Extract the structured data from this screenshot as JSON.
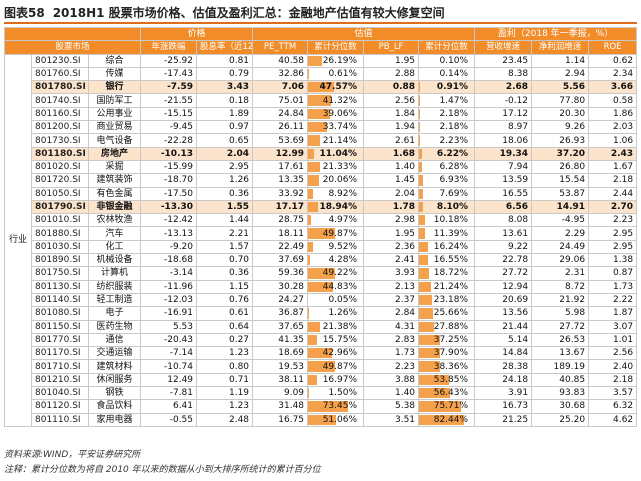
{
  "figure": {
    "number": "图表58",
    "title": "2018H1 股票市场价格、估值及盈利汇总：金融地产估值有较大修复空间"
  },
  "headers": {
    "group_price": "价格",
    "group_valuation": "估值",
    "group_profit": "盈利（2018 年一季报，%）",
    "market": "股票市场",
    "cols": [
      "年涨跌幅",
      "股息率（近12M）",
      "PE_TTM",
      "累计分位数",
      "PB_LF",
      "累计分位数",
      "营收增速",
      "净利润增速",
      "ROE"
    ]
  },
  "industry_label": "行业",
  "colors": {
    "header": "#f28c28",
    "highlight": "#fbe3cc",
    "bar": "#f5a04a",
    "rule": "#e06b1a"
  },
  "rows": [
    {
      "code": "801230.SI",
      "name": "综合",
      "chg": "-25.92",
      "dy": "0.81",
      "pe": "40.58",
      "pe_pct": "26.19%",
      "pe_pct_v": 26.19,
      "pb": "1.95",
      "pb_pct": "0.10%",
      "pb_pct_v": 0.1,
      "rev": "23.45",
      "np": "1.14",
      "roe": "0.62",
      "hl": false
    },
    {
      "code": "801760.SI",
      "name": "传媒",
      "chg": "-17.43",
      "dy": "0.79",
      "pe": "32.86",
      "pe_pct": "0.61%",
      "pe_pct_v": 0.61,
      "pb": "2.88",
      "pb_pct": "0.14%",
      "pb_pct_v": 0.14,
      "rev": "8.38",
      "np": "2.94",
      "roe": "2.34",
      "hl": false
    },
    {
      "code": "801780.SI",
      "name": "银行",
      "chg": "-7.59",
      "dy": "3.43",
      "pe": "7.06",
      "pe_pct": "47.57%",
      "pe_pct_v": 47.57,
      "pb": "0.88",
      "pb_pct": "0.91%",
      "pb_pct_v": 0.91,
      "rev": "2.68",
      "np": "5.56",
      "roe": "3.66",
      "hl": true
    },
    {
      "code": "801740.SI",
      "name": "国防军工",
      "chg": "-21.55",
      "dy": "0.18",
      "pe": "75.01",
      "pe_pct": "41.32%",
      "pe_pct_v": 41.32,
      "pb": "2.56",
      "pb_pct": "1.47%",
      "pb_pct_v": 1.47,
      "rev": "-0.12",
      "np": "77.80",
      "roe": "0.58",
      "hl": false
    },
    {
      "code": "801160.SI",
      "name": "公用事业",
      "chg": "-15.15",
      "dy": "1.89",
      "pe": "24.84",
      "pe_pct": "39.06%",
      "pe_pct_v": 39.06,
      "pb": "1.84",
      "pb_pct": "2.18%",
      "pb_pct_v": 2.18,
      "rev": "17.12",
      "np": "20.30",
      "roe": "1.86",
      "hl": false
    },
    {
      "code": "801200.SI",
      "name": "商业贸易",
      "chg": "-9.45",
      "dy": "0.97",
      "pe": "26.11",
      "pe_pct": "33.74%",
      "pe_pct_v": 33.74,
      "pb": "1.94",
      "pb_pct": "2.18%",
      "pb_pct_v": 2.18,
      "rev": "8.97",
      "np": "9.26",
      "roe": "2.03",
      "hl": false
    },
    {
      "code": "801730.SI",
      "name": "电气设备",
      "chg": "-22.28",
      "dy": "0.65",
      "pe": "53.69",
      "pe_pct": "21.14%",
      "pe_pct_v": 21.14,
      "pb": "2.61",
      "pb_pct": "2.23%",
      "pb_pct_v": 2.23,
      "rev": "18.06",
      "np": "26.93",
      "roe": "1.06",
      "hl": false
    },
    {
      "code": "801180.SI",
      "name": "房地产",
      "chg": "-10.13",
      "dy": "2.04",
      "pe": "12.99",
      "pe_pct": "11.04%",
      "pe_pct_v": 11.04,
      "pb": "1.68",
      "pb_pct": "6.22%",
      "pb_pct_v": 6.22,
      "rev": "19.34",
      "np": "37.20",
      "roe": "2.43",
      "hl": true
    },
    {
      "code": "801020.SI",
      "name": "采掘",
      "chg": "-15.99",
      "dy": "2.95",
      "pe": "17.61",
      "pe_pct": "21.33%",
      "pe_pct_v": 21.33,
      "pb": "1.40",
      "pb_pct": "6.28%",
      "pb_pct_v": 6.28,
      "rev": "7.94",
      "np": "26.80",
      "roe": "1.67",
      "hl": false
    },
    {
      "code": "801720.SI",
      "name": "建筑装饰",
      "chg": "-18.70",
      "dy": "1.26",
      "pe": "13.35",
      "pe_pct": "20.06%",
      "pe_pct_v": 20.06,
      "pb": "1.45",
      "pb_pct": "6.93%",
      "pb_pct_v": 6.93,
      "rev": "13.59",
      "np": "15.54",
      "roe": "2.18",
      "hl": false
    },
    {
      "code": "801050.SI",
      "name": "有色金属",
      "chg": "-17.50",
      "dy": "0.36",
      "pe": "33.92",
      "pe_pct": "8.92%",
      "pe_pct_v": 8.92,
      "pb": "2.04",
      "pb_pct": "7.69%",
      "pb_pct_v": 7.69,
      "rev": "16.55",
      "np": "53.87",
      "roe": "2.44",
      "hl": false
    },
    {
      "code": "801790.SI",
      "name": "非银金融",
      "chg": "-13.30",
      "dy": "1.55",
      "pe": "17.17",
      "pe_pct": "18.94%",
      "pe_pct_v": 18.94,
      "pb": "1.78",
      "pb_pct": "8.10%",
      "pb_pct_v": 8.1,
      "rev": "6.56",
      "np": "14.91",
      "roe": "2.70",
      "hl": true
    },
    {
      "code": "801010.SI",
      "name": "农林牧渔",
      "chg": "-12.42",
      "dy": "1.44",
      "pe": "28.75",
      "pe_pct": "4.97%",
      "pe_pct_v": 4.97,
      "pb": "2.98",
      "pb_pct": "10.18%",
      "pb_pct_v": 10.18,
      "rev": "8.08",
      "np": "-4.95",
      "roe": "2.23",
      "hl": false
    },
    {
      "code": "801880.SI",
      "name": "汽车",
      "chg": "-13.13",
      "dy": "2.21",
      "pe": "18.11",
      "pe_pct": "49.87%",
      "pe_pct_v": 49.87,
      "pb": "1.95",
      "pb_pct": "11.39%",
      "pb_pct_v": 11.39,
      "rev": "13.61",
      "np": "2.29",
      "roe": "2.95",
      "hl": false
    },
    {
      "code": "801030.SI",
      "name": "化工",
      "chg": "-9.20",
      "dy": "1.57",
      "pe": "22.49",
      "pe_pct": "9.52%",
      "pe_pct_v": 9.52,
      "pb": "2.36",
      "pb_pct": "16.24%",
      "pb_pct_v": 16.24,
      "rev": "9.22",
      "np": "24.49",
      "roe": "2.95",
      "hl": false
    },
    {
      "code": "801890.SI",
      "name": "机械设备",
      "chg": "-18.68",
      "dy": "0.70",
      "pe": "37.69",
      "pe_pct": "4.28%",
      "pe_pct_v": 4.28,
      "pb": "2.41",
      "pb_pct": "16.55%",
      "pb_pct_v": 16.55,
      "rev": "22.78",
      "np": "29.06",
      "roe": "1.38",
      "hl": false
    },
    {
      "code": "801750.SI",
      "name": "计算机",
      "chg": "-3.14",
      "dy": "0.36",
      "pe": "59.36",
      "pe_pct": "49.22%",
      "pe_pct_v": 49.22,
      "pb": "3.93",
      "pb_pct": "18.72%",
      "pb_pct_v": 18.72,
      "rev": "27.72",
      "np": "2.31",
      "roe": "0.87",
      "hl": false
    },
    {
      "code": "801130.SI",
      "name": "纺织服装",
      "chg": "-11.96",
      "dy": "1.15",
      "pe": "30.28",
      "pe_pct": "44.83%",
      "pe_pct_v": 44.83,
      "pb": "2.13",
      "pb_pct": "21.24%",
      "pb_pct_v": 21.24,
      "rev": "12.94",
      "np": "8.72",
      "roe": "1.73",
      "hl": false
    },
    {
      "code": "801140.SI",
      "name": "轻工制造",
      "chg": "-12.03",
      "dy": "0.76",
      "pe": "24.27",
      "pe_pct": "0.05%",
      "pe_pct_v": 0.05,
      "pb": "2.37",
      "pb_pct": "23.18%",
      "pb_pct_v": 23.18,
      "rev": "20.69",
      "np": "21.92",
      "roe": "2.22",
      "hl": false
    },
    {
      "code": "801080.SI",
      "name": "电子",
      "chg": "-16.91",
      "dy": "0.61",
      "pe": "36.87",
      "pe_pct": "1.26%",
      "pe_pct_v": 1.26,
      "pb": "2.84",
      "pb_pct": "25.66%",
      "pb_pct_v": 25.66,
      "rev": "13.56",
      "np": "5.98",
      "roe": "1.87",
      "hl": false
    },
    {
      "code": "801150.SI",
      "name": "医药生物",
      "chg": "5.53",
      "dy": "0.64",
      "pe": "37.65",
      "pe_pct": "21.38%",
      "pe_pct_v": 21.38,
      "pb": "4.31",
      "pb_pct": "27.88%",
      "pb_pct_v": 27.88,
      "rev": "21.44",
      "np": "27.72",
      "roe": "3.07",
      "hl": false
    },
    {
      "code": "801770.SI",
      "name": "通信",
      "chg": "-20.43",
      "dy": "0.27",
      "pe": "41.35",
      "pe_pct": "15.75%",
      "pe_pct_v": 15.75,
      "pb": "2.83",
      "pb_pct": "37.25%",
      "pb_pct_v": 37.25,
      "rev": "5.14",
      "np": "26.53",
      "roe": "1.01",
      "hl": false
    },
    {
      "code": "801170.SI",
      "name": "交通运输",
      "chg": "-7.14",
      "dy": "1.23",
      "pe": "18.69",
      "pe_pct": "42.96%",
      "pe_pct_v": 42.96,
      "pb": "1.73",
      "pb_pct": "37.90%",
      "pb_pct_v": 37.9,
      "rev": "14.84",
      "np": "13.67",
      "roe": "2.56",
      "hl": false
    },
    {
      "code": "801710.SI",
      "name": "建筑材料",
      "chg": "-10.74",
      "dy": "0.80",
      "pe": "19.53",
      "pe_pct": "49.87%",
      "pe_pct_v": 49.87,
      "pb": "2.23",
      "pb_pct": "38.36%",
      "pb_pct_v": 38.36,
      "rev": "28.38",
      "np": "189.19",
      "roe": "2.40",
      "hl": false
    },
    {
      "code": "801210.SI",
      "name": "休闲服务",
      "chg": "12.49",
      "dy": "0.71",
      "pe": "38.11",
      "pe_pct": "16.97%",
      "pe_pct_v": 16.97,
      "pb": "3.88",
      "pb_pct": "53.85%",
      "pb_pct_v": 53.85,
      "rev": "24.18",
      "np": "40.85",
      "roe": "2.18",
      "hl": false
    },
    {
      "code": "801040.SI",
      "name": "钢铁",
      "chg": "-7.81",
      "dy": "1.19",
      "pe": "9.09",
      "pe_pct": "1.50%",
      "pe_pct_v": 1.5,
      "pb": "1.40",
      "pb_pct": "56.43%",
      "pb_pct_v": 56.43,
      "rev": "3.91",
      "np": "93.83",
      "roe": "3.57",
      "hl": false
    },
    {
      "code": "801120.SI",
      "name": "食品饮料",
      "chg": "6.41",
      "dy": "1.23",
      "pe": "31.48",
      "pe_pct": "73.45%",
      "pe_pct_v": 73.45,
      "pb": "5.38",
      "pb_pct": "75.71%",
      "pb_pct_v": 75.71,
      "rev": "16.73",
      "np": "30.68",
      "roe": "6.32",
      "hl": false
    },
    {
      "code": "801110.SI",
      "name": "家用电器",
      "chg": "-0.55",
      "dy": "2.48",
      "pe": "16.75",
      "pe_pct": "51.06%",
      "pe_pct_v": 51.06,
      "pb": "3.51",
      "pb_pct": "82.44%",
      "pb_pct_v": 82.44,
      "rev": "21.25",
      "np": "25.20",
      "roe": "4.62",
      "hl": false
    }
  ],
  "footnotes": {
    "source": "资料来源:WIND，平安证券研究所",
    "note": "注释：累计分位数为将自 2010 年以来的数据从小到大排序所统计的累计百分位"
  }
}
